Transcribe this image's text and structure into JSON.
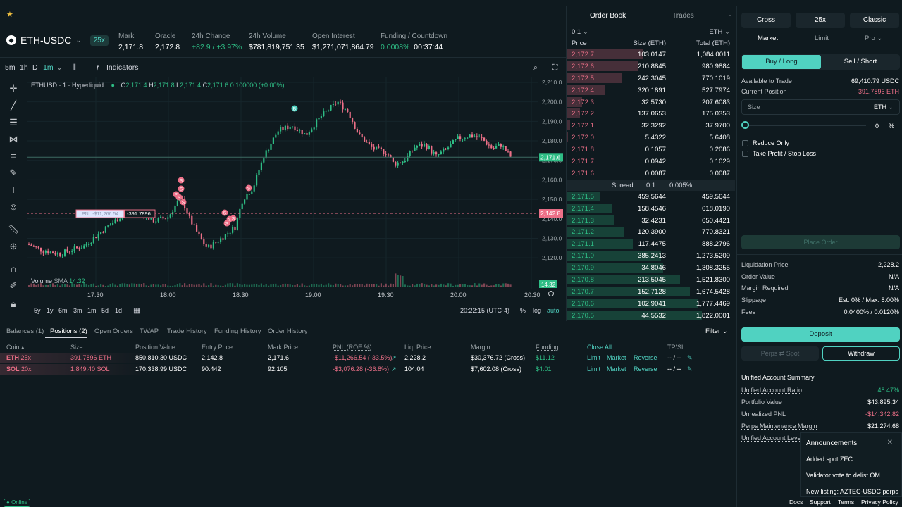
{
  "colors": {
    "bg": "#0f1a1f",
    "green": "#2ebd85",
    "red": "#ed7088",
    "accent": "#50d2c1"
  },
  "market": {
    "pair": "ETH-USDC",
    "leverage": "25x",
    "stats": [
      {
        "label": "Mark",
        "value": "2,171.8",
        "tone": ""
      },
      {
        "label": "Oracle",
        "value": "2,172.8",
        "tone": ""
      },
      {
        "label": "24h Change",
        "value": "+82.9 / +3.97%",
        "tone": "green"
      },
      {
        "label": "24h Volume",
        "value": "$781,819,751.35",
        "tone": ""
      },
      {
        "label": "Open Interest",
        "value": "$1,271,071,864.79",
        "tone": ""
      },
      {
        "label": "Funding / Countdown",
        "value": "0.0008%",
        "value2": "00:37:44",
        "tone": "green"
      }
    ]
  },
  "chart_toolbar": {
    "intervals": [
      "5m",
      "1h",
      "D"
    ],
    "active_interval": "1m",
    "indicators": "Indicators"
  },
  "chart": {
    "symbol": "ETHUSD · 1 · Hyperliquid",
    "ohlc": {
      "o": "2,171.4",
      "h": "2,171.8",
      "l": "2,171.4",
      "c": "2,171.6",
      "chg": "0.100000 (+0.00%)"
    },
    "price_ticks": [
      "2,210.0",
      "2,200.0",
      "2,190.0",
      "2,180.0",
      "2,170.0",
      "2,160.0",
      "2,150.0",
      "2,140.0",
      "2,130.0",
      "2,120.0"
    ],
    "current_price": "2,171.6",
    "entry_price": "2,142.8",
    "pnl_label": "PNL -$11,266.54",
    "pnl_size": "-391.7896",
    "time_ticks": [
      "17:30",
      "18:00",
      "18:30",
      "19:00",
      "19:30",
      "20:00",
      "20:30"
    ],
    "volume_label": "Volume",
    "volume_ind": "SMA",
    "volume_value": "14.32",
    "volume_tag": "14.32",
    "ranges": [
      "5y",
      "1y",
      "6m",
      "3m",
      "1m",
      "5d",
      "1d"
    ],
    "clock": "20:22:15 (UTC-4)",
    "pct": "%",
    "log": "log",
    "auto": "auto"
  },
  "orderbook": {
    "tabs": [
      "Order Book",
      "Trades"
    ],
    "precision": "0.1",
    "unit": "ETH",
    "headers": [
      "Price",
      "Size (ETH)",
      "Total (ETH)"
    ],
    "asks": [
      [
        "2,172.7",
        "103.0147",
        "1,084.0011",
        0.45
      ],
      [
        "2,172.6",
        "210.8845",
        "980.9884",
        0.42
      ],
      [
        "2,172.5",
        "242.3045",
        "770.1019",
        0.33
      ],
      [
        "2,172.4",
        "320.1891",
        "527.7974",
        0.23
      ],
      [
        "2,172.3",
        "32.5730",
        "207.6083",
        0.09
      ],
      [
        "2,172.2",
        "137.0653",
        "175.0353",
        0.08
      ],
      [
        "2,172.1",
        "32.3292",
        "37.9700",
        0.02
      ],
      [
        "2,172.0",
        "5.4322",
        "5.6408",
        0.01
      ],
      [
        "2,171.8",
        "0.1057",
        "0.2086",
        0.0
      ],
      [
        "2,171.7",
        "0.0942",
        "0.1029",
        0.0
      ],
      [
        "2,171.6",
        "0.0087",
        "0.0087",
        0.0
      ]
    ],
    "spread_label": "Spread",
    "spread_value": "0.1",
    "spread_pct": "0.005%",
    "bids": [
      [
        "2,171.5",
        "459.5644",
        "459.5644",
        0.2
      ],
      [
        "2,171.4",
        "158.4546",
        "618.0190",
        0.27
      ],
      [
        "2,171.3",
        "32.4231",
        "650.4421",
        0.28
      ],
      [
        "2,171.2",
        "120.3900",
        "770.8321",
        0.34
      ],
      [
        "2,171.1",
        "117.4475",
        "888.2796",
        0.39
      ],
      [
        "2,171.0",
        "385.2413",
        "1,273.5209",
        0.56
      ],
      [
        "2,170.9",
        "34.8046",
        "1,308.3255",
        0.57
      ],
      [
        "2,170.8",
        "213.5045",
        "1,521.8300",
        0.67
      ],
      [
        "2,170.7",
        "152.7128",
        "1,674.5428",
        0.73
      ],
      [
        "2,170.6",
        "102.9041",
        "1,777.4469",
        0.78
      ],
      [
        "2,170.5",
        "44.5532",
        "1,822.0001",
        0.8
      ]
    ]
  },
  "trade_panel": {
    "margin_modes": [
      "Cross",
      "25x",
      "Classic"
    ],
    "order_types": [
      "Market",
      "Limit",
      "Pro"
    ],
    "sides": [
      "Buy / Long",
      "Sell / Short"
    ],
    "available_label": "Available to Trade",
    "available_value": "69,410.79 USDC",
    "position_label": "Current Position",
    "position_value": "391.7896 ETH",
    "size_placeholder": "Size",
    "size_unit": "ETH",
    "slider_value": "0",
    "slider_unit": "%",
    "reduce_only": "Reduce Only",
    "tpsl": "Take Profit / Stop Loss",
    "place_order": "Place Order",
    "info": [
      {
        "k": "Liquidation Price",
        "v": "2,228.2"
      },
      {
        "k": "Order Value",
        "v": "N/A"
      },
      {
        "k": "Margin Required",
        "v": "N/A"
      },
      {
        "k": "Slippage",
        "v": "Est: 0% / Max: 8.00%"
      },
      {
        "k": "Fees",
        "v": "0.0400% / 0.0120%"
      }
    ],
    "deposit": "Deposit",
    "perps_spot": "Perps ⇄ Spot",
    "withdraw": "Withdraw",
    "summary_title": "Unified Account Summary",
    "summary": [
      {
        "k": "Unified Account Ratio",
        "v": "48.47%"
      },
      {
        "k": "Portfolio Value",
        "v": "$43,895.34"
      },
      {
        "k": "Unrealized PNL",
        "v": "-$14,342.82"
      },
      {
        "k": "Perps Maintenance Margin",
        "v": "$21,274.68"
      },
      {
        "k": "Unified Account Lever",
        "v": ""
      }
    ]
  },
  "bottom": {
    "tabs": [
      "Balances (1)",
      "Positions (2)",
      "Open Orders",
      "TWAP",
      "Trade History",
      "Funding History",
      "Order History"
    ],
    "filter": "Filter",
    "headers": [
      "Coin",
      "Size",
      "Position Value",
      "Entry Price",
      "Mark Price",
      "PNL (ROE %)",
      "Liq. Price",
      "Margin",
      "Funding",
      "Close All",
      "TP/SL"
    ],
    "rows": [
      {
        "coin": "ETH",
        "lev": "25x",
        "size": "391.7896 ETH",
        "value": "850,810.30 USDC",
        "entry": "2,142.8",
        "mark": "2,171.6",
        "pnl": "-$11,266.54 (-33.5%)",
        "liq": "2,228.2",
        "margin": "$30,376.72 (Cross)",
        "funding": "$11.12",
        "a1": "Limit",
        "a2": "Market",
        "a3": "Reverse",
        "tpsl": "-- / --"
      },
      {
        "coin": "SOL",
        "lev": "20x",
        "size": "1,849.40 SOL",
        "value": "170,338.99 USDC",
        "entry": "90.442",
        "mark": "92.105",
        "pnl": "-$3,076.28 (-36.8%)",
        "liq": "104.04",
        "margin": "$7,602.08 (Cross)",
        "funding": "$4.01",
        "a1": "Limit",
        "a2": "Market",
        "a3": "Reverse",
        "tpsl": "-- / --"
      }
    ]
  },
  "announcements": {
    "title": "Announcements",
    "items": [
      "Added spot ZEC",
      "Validator vote to delist OM",
      "New listing: AZTEC-USDC perps"
    ]
  },
  "status_bar": {
    "online": "Online",
    "links": [
      "Docs",
      "Support",
      "Terms",
      "Privacy Policy"
    ]
  }
}
